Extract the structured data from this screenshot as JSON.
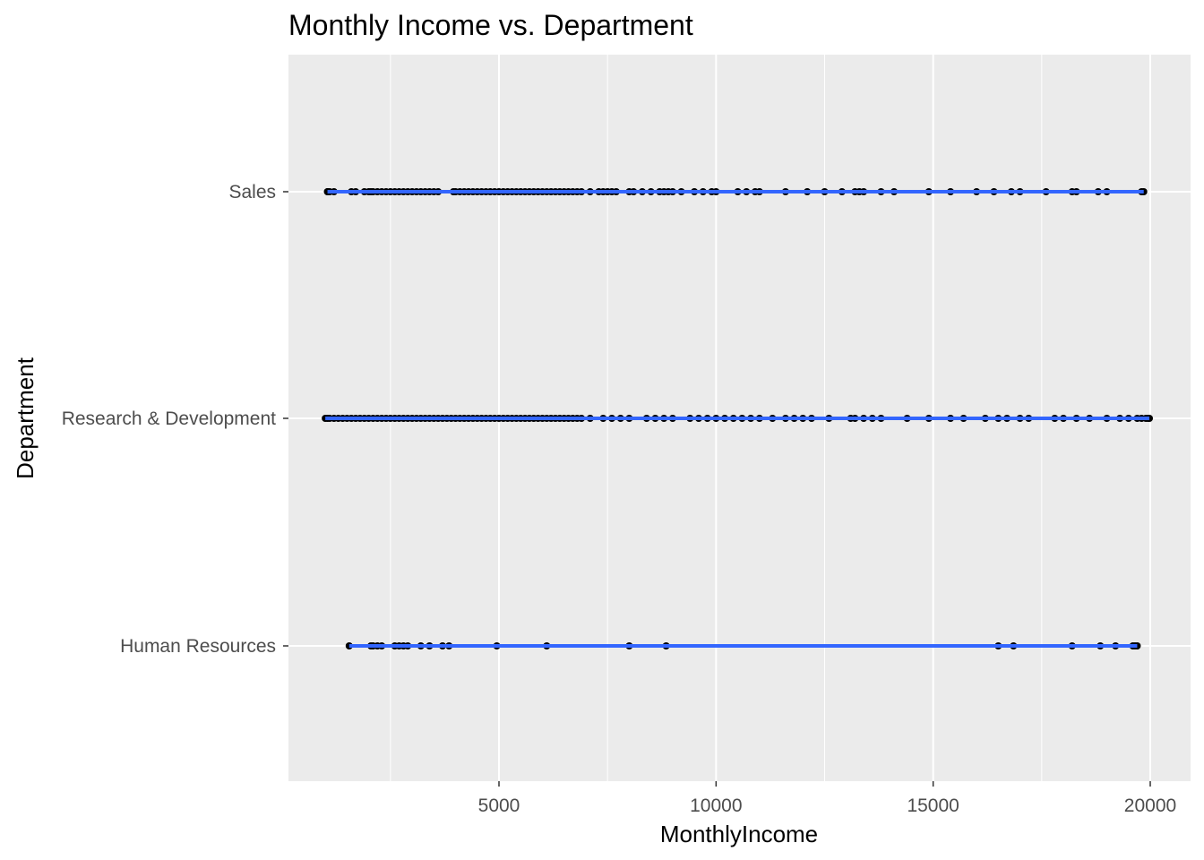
{
  "chart_data": {
    "type": "scatter",
    "title": "Monthly Income vs. Department",
    "xlabel": "MonthlyIncome",
    "ylabel": "Department",
    "xlim": [
      0,
      20500
    ],
    "x_ticks": [
      5000,
      10000,
      15000,
      20000
    ],
    "x_minor_ticks": [
      2500,
      7500,
      12500,
      17500
    ],
    "categories": [
      "Human Resources",
      "Research & Development",
      "Sales"
    ],
    "grid": true,
    "colors": {
      "panel": "#ebebeb",
      "grid": "#ffffff",
      "point": "#000000",
      "line": "#3366ff"
    },
    "series": [
      {
        "category": "Sales",
        "values": [
          1050,
          1052,
          1100,
          1200,
          1600,
          1700,
          1900,
          2000,
          2050,
          2100,
          2200,
          2300,
          2400,
          2500,
          2600,
          2700,
          2800,
          2900,
          3000,
          3100,
          3200,
          3300,
          3400,
          3500,
          3600,
          3950,
          4000,
          4100,
          4200,
          4300,
          4400,
          4500,
          4600,
          4700,
          4800,
          4900,
          5000,
          5100,
          5200,
          5300,
          5400,
          5500,
          5600,
          5700,
          5800,
          5900,
          6000,
          6100,
          6200,
          6300,
          6400,
          6500,
          6600,
          6700,
          6800,
          6900,
          7100,
          7300,
          7400,
          7500,
          7600,
          7700,
          8000,
          8100,
          8300,
          8500,
          8700,
          8800,
          8900,
          9000,
          9200,
          9500,
          9700,
          9900,
          10000,
          10500,
          10700,
          10900,
          11000,
          11600,
          12100,
          12500,
          12900,
          13200,
          13300,
          13400,
          13800,
          14100,
          14900,
          15400,
          16000,
          16400,
          16800,
          17000,
          17600,
          18200,
          18300,
          18800,
          19000,
          19800,
          19850
        ]
      },
      {
        "category": "Research & Development",
        "values": [
          1000,
          1050,
          1100,
          1200,
          1300,
          1400,
          1500,
          1600,
          1700,
          1800,
          1900,
          2000,
          2100,
          2200,
          2300,
          2400,
          2500,
          2600,
          2700,
          2800,
          2900,
          3000,
          3100,
          3200,
          3300,
          3400,
          3500,
          3600,
          3700,
          3800,
          3900,
          4000,
          4100,
          4200,
          4300,
          4400,
          4500,
          4600,
          4700,
          4800,
          4900,
          5000,
          5100,
          5200,
          5300,
          5400,
          5500,
          5600,
          5700,
          5800,
          5900,
          6000,
          6100,
          6200,
          6300,
          6400,
          6500,
          6600,
          6700,
          6800,
          6900,
          7100,
          7400,
          7600,
          7800,
          8000,
          8400,
          8600,
          8800,
          9000,
          9400,
          9600,
          9800,
          10000,
          10200,
          10400,
          10600,
          10800,
          11000,
          11300,
          11600,
          11800,
          12000,
          12200,
          12600,
          13100,
          13200,
          13400,
          13600,
          13800,
          14400,
          14900,
          15400,
          15700,
          16200,
          16500,
          16700,
          17000,
          17200,
          17800,
          18000,
          18300,
          18600,
          19000,
          19300,
          19500,
          19700,
          19800,
          19900,
          19950,
          19980
        ]
      },
      {
        "category": "Human Resources",
        "values": [
          1550,
          2050,
          2100,
          2200,
          2300,
          2600,
          2700,
          2800,
          2900,
          3200,
          3400,
          3700,
          3850,
          4950,
          6100,
          8000,
          8850,
          16500,
          16850,
          18200,
          18850,
          19200,
          19600,
          19650,
          19700
        ]
      }
    ]
  }
}
